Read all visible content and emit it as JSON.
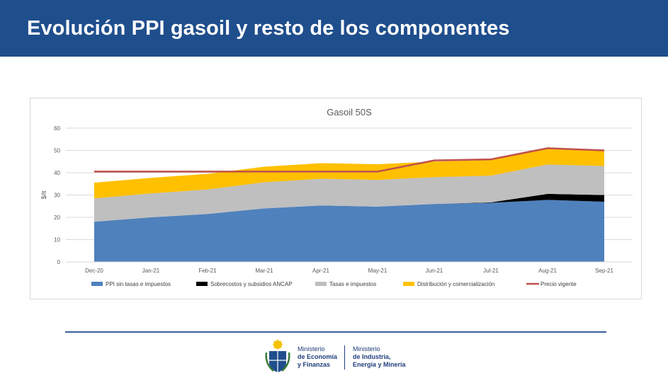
{
  "header": {
    "title": "Evolución PPI gasoil y resto de los componentes"
  },
  "colors": {
    "header_bg": "#1f4e8c",
    "ppi": "#4f81bd",
    "sobrecostos": "#000000",
    "tasas": "#bfbfbf",
    "distribucion": "#ffc000",
    "precio": "#c0504d"
  },
  "chart_data": {
    "type": "area",
    "title": "Gasoil 50S",
    "ylabel": "$/lt",
    "xlabel": "",
    "ylim": [
      0,
      60
    ],
    "yticks": [
      0,
      10,
      20,
      30,
      40,
      50,
      60
    ],
    "categories": [
      "Dec-20",
      "Jan-21",
      "Feb-21",
      "Mar-21",
      "Apr-21",
      "May-21",
      "Jun-21",
      "Jul-21",
      "Aug-21",
      "Sep-21"
    ],
    "stacked": true,
    "series": [
      {
        "name": "PPI sin tasas e impuestos",
        "kind": "area",
        "color": "#4f81bd",
        "values": [
          18,
          20,
          21.5,
          24,
          25.3,
          24.8,
          26,
          26.5,
          27.8,
          27
        ]
      },
      {
        "name": "Sobrecostos y subsidios ANCAP",
        "kind": "area",
        "color": "#000000",
        "values": [
          0,
          0,
          0,
          0,
          0,
          0,
          0,
          0.2,
          2.7,
          3
        ]
      },
      {
        "name": "Tasas e impuestos",
        "kind": "area",
        "color": "#bfbfbf",
        "values": [
          10.5,
          10.7,
          11,
          11.7,
          12,
          12,
          12,
          12,
          13.2,
          13
        ]
      },
      {
        "name": "Distribución y comercialización",
        "kind": "area",
        "color": "#ffc000",
        "values": [
          7,
          7,
          7,
          7,
          7,
          7,
          7,
          7,
          7.3,
          7
        ]
      },
      {
        "name": "Precio vigente",
        "kind": "line",
        "color": "#c0504d",
        "values": [
          40.5,
          40.5,
          40.5,
          40.5,
          40.5,
          40.5,
          45.5,
          46,
          51,
          50
        ]
      }
    ],
    "legend_position": "bottom",
    "grid": true
  },
  "footer": {
    "ministry1": {
      "line1": "Ministerio",
      "line2": "de Economía",
      "line3": "y Finanzas"
    },
    "ministry2": {
      "line1": "Ministerio",
      "line2": "de Industria,",
      "line3": "Energía y Minería"
    }
  }
}
